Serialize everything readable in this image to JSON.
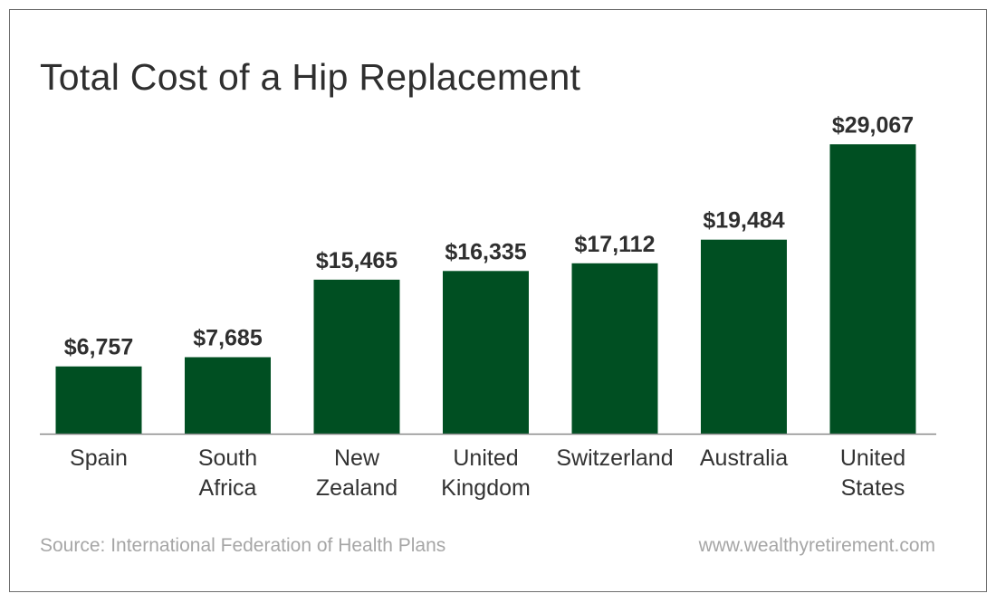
{
  "title": "Total Cost of a Hip Replacement",
  "source": "Source: International Federation of Health Plans",
  "website": "www.wealthyretirement.com",
  "colors": {
    "bar": "#004f22",
    "value_label": "#2f2f2f",
    "category_label": "#333333",
    "baseline": "#8a8a8a",
    "footer": "#a6a6a6",
    "border": "#6f6f6f"
  },
  "chart_data": {
    "type": "bar",
    "title": "Total Cost of a Hip Replacement",
    "xlabel": "",
    "ylabel": "",
    "grid": false,
    "legend": "none",
    "ylim": [
      0,
      30000
    ],
    "categories": [
      [
        "Spain"
      ],
      [
        "South",
        "Africa"
      ],
      [
        "New",
        "Zealand"
      ],
      [
        "United",
        "Kingdom"
      ],
      [
        "Switzerland"
      ],
      [
        "Australia"
      ],
      [
        "United",
        "States"
      ]
    ],
    "values": [
      6757,
      7685,
      15465,
      16335,
      17112,
      19484,
      29067
    ],
    "value_labels": [
      "$6,757",
      "$7,685",
      "$15,465",
      "$16,335",
      "$17,112",
      "$19,484",
      "$29,067"
    ]
  }
}
